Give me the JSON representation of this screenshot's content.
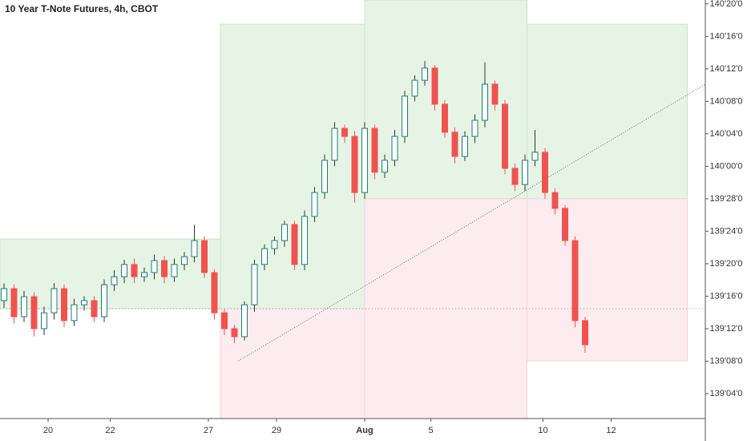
{
  "chart_data": {
    "type": "candlestick",
    "title": "10 Year T-Note Futures, 4h, CBOT",
    "open": [
      139.483,
      139.529,
      139.421,
      139.498,
      139.375,
      139.436,
      139.529,
      139.406,
      139.467,
      139.483,
      139.421,
      139.544,
      139.575,
      139.622,
      139.575,
      139.591,
      139.637,
      139.575,
      139.622,
      139.652,
      139.714,
      139.591,
      139.436,
      139.375,
      139.344,
      139.467,
      139.622,
      139.683,
      139.714,
      139.776,
      139.622,
      139.807,
      139.899,
      140.023,
      140.146,
      140.115,
      139.899,
      140.146,
      139.977,
      140.023,
      140.115,
      140.27,
      140.331,
      140.378,
      140.239,
      140.131,
      140.038,
      140.115,
      140.177,
      140.316,
      140.239,
      139.992,
      139.93,
      140.023,
      140.054,
      139.899,
      139.838,
      139.714,
      139.406
    ],
    "high": [
      139.549,
      139.545,
      139.52,
      139.515,
      139.46,
      139.55,
      139.545,
      139.49,
      139.5,
      139.5,
      139.565,
      139.6,
      139.64,
      139.645,
      139.61,
      139.66,
      139.655,
      139.645,
      139.67,
      139.775,
      139.73,
      139.605,
      139.45,
      139.39,
      139.48,
      139.64,
      139.7,
      139.73,
      139.79,
      139.79,
      139.83,
      139.92,
      140.045,
      140.17,
      140.16,
      140.135,
      140.17,
      140.16,
      140.045,
      140.14,
      140.29,
      140.35,
      140.405,
      140.39,
      140.255,
      140.15,
      140.135,
      140.2,
      140.4,
      140.33,
      140.255,
      140.01,
      140.045,
      140.14,
      140.07,
      139.915,
      139.85,
      139.73,
      139.42
    ],
    "low": [
      139.455,
      139.395,
      139.4,
      139.345,
      139.35,
      139.41,
      139.38,
      139.385,
      139.445,
      139.4,
      139.4,
      139.52,
      139.55,
      139.55,
      139.555,
      139.565,
      139.55,
      139.555,
      139.6,
      139.63,
      139.57,
      139.41,
      139.35,
      139.32,
      139.33,
      139.44,
      139.6,
      139.66,
      139.69,
      139.6,
      139.6,
      139.785,
      139.875,
      140,
      140.09,
      139.86,
      139.875,
      139.95,
      139.955,
      140,
      140.09,
      140.25,
      140.31,
      140.215,
      140.11,
      140.01,
      140.02,
      140.09,
      140.15,
      140.215,
      139.97,
      139.905,
      139.905,
      140,
      139.875,
      139.815,
      139.695,
      139.38,
      139.282
    ],
    "close": [
      139.529,
      139.421,
      139.498,
      139.375,
      139.436,
      139.529,
      139.406,
      139.467,
      139.483,
      139.421,
      139.544,
      139.575,
      139.622,
      139.575,
      139.591,
      139.637,
      139.575,
      139.622,
      139.652,
      139.714,
      139.591,
      139.436,
      139.375,
      139.344,
      139.467,
      139.622,
      139.683,
      139.714,
      139.776,
      139.622,
      139.807,
      139.899,
      140.023,
      140.146,
      140.115,
      139.899,
      140.146,
      139.977,
      140.023,
      140.115,
      140.27,
      140.331,
      140.378,
      140.239,
      140.131,
      140.038,
      140.115,
      140.177,
      140.316,
      140.239,
      139.992,
      139.93,
      140.023,
      140.054,
      139.899,
      139.838,
      139.714,
      139.406,
      139.313
    ],
    "up_color": "#1e7d73",
    "down_color": "#ef5350",
    "xlim": [
      -0.4,
      70
    ],
    "xticks": [
      {
        "value": 4.4,
        "label": "20"
      },
      {
        "value": 10.6,
        "label": "22"
      },
      {
        "value": 20.4,
        "label": "27"
      },
      {
        "value": 27.2,
        "label": "29"
      },
      {
        "value": 36,
        "label": "Aug"
      },
      {
        "value": 42.6,
        "label": "5"
      },
      {
        "value": 53.8,
        "label": "10"
      },
      {
        "value": 60.6,
        "label": "12"
      }
    ],
    "ylim": [
      139.029,
      140.64
    ],
    "yticks": [
      {
        "value": 140.625,
        "label": "140'20'0"
      },
      {
        "value": 140.5,
        "label": "140'16'0"
      },
      {
        "value": 140.375,
        "label": "140'12'0"
      },
      {
        "value": 140.25,
        "label": "140'08'0"
      },
      {
        "value": 140.125,
        "label": "140'04'0"
      },
      {
        "value": 140,
        "label": "140'00'0"
      },
      {
        "value": 139.875,
        "label": "139'28'0"
      },
      {
        "value": 139.75,
        "label": "139'24'0"
      },
      {
        "value": 139.625,
        "label": "139'20'0"
      },
      {
        "value": 139.5,
        "label": "139'16'0"
      },
      {
        "value": 139.375,
        "label": "139'12'0"
      },
      {
        "value": 139.25,
        "label": "139'08'0"
      },
      {
        "value": 139.125,
        "label": "139'04'0"
      }
    ],
    "zones": [
      {
        "x": [
          -0.4,
          21.6
        ],
        "y": [
          139.452,
          139.72
        ],
        "color": "#e6f4e6"
      },
      {
        "x": [
          21.6,
          36
        ],
        "y": [
          139.452,
          140.547
        ],
        "color": "#e6f4e6"
      },
      {
        "x": [
          21.6,
          36
        ],
        "y": [
          139.029,
          139.452
        ],
        "color": "#fdecef"
      },
      {
        "x": [
          36,
          52.2
        ],
        "y": [
          139.875,
          140.64
        ],
        "color": "#e6f4e6"
      },
      {
        "x": [
          36,
          52.2
        ],
        "y": [
          139.029,
          139.875
        ],
        "color": "#fdecef"
      },
      {
        "x": [
          52.2,
          68.2
        ],
        "y": [
          139.875,
          140.547
        ],
        "color": "#e6f4e6"
      },
      {
        "x": [
          52.2,
          68.2
        ],
        "y": [
          139.251,
          139.875
        ],
        "color": "#fdecef"
      }
    ],
    "trend_line": {
      "x": [
        23.4,
        70
      ],
      "y": [
        139.251,
        140.316
      ]
    },
    "level_line": 139.452
  }
}
